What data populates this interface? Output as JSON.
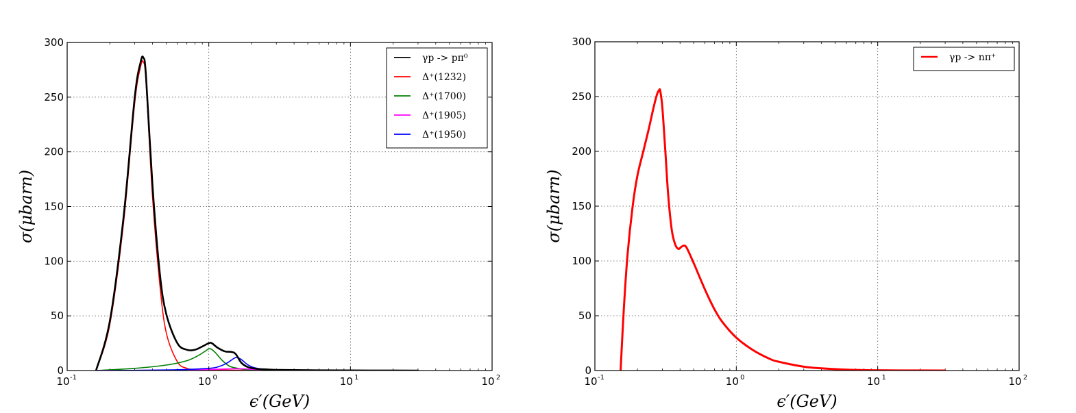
{
  "chart_data": [
    {
      "type": "line",
      "xscale": "log",
      "xlim": [
        0.1,
        100
      ],
      "ylim": [
        0,
        300
      ],
      "x_ticks": [
        {
          "base": "10",
          "exp": "-1"
        },
        {
          "base": "10",
          "exp": "0"
        },
        {
          "base": "10",
          "exp": "1"
        },
        {
          "base": "10",
          "exp": "2"
        }
      ],
      "y_ticks": [
        "0",
        "50",
        "100",
        "150",
        "200",
        "250",
        "300"
      ],
      "xlabel": "ϵ′(GeV)",
      "ylabel": "σ(μbarn)",
      "grid": true,
      "legend_position": "top-right",
      "series": [
        {
          "name": "γp -> pπ⁰",
          "color": "#000000",
          "x": [
            0.16,
            0.2,
            0.25,
            0.3,
            0.33,
            0.345,
            0.36,
            0.4,
            0.45,
            0.5,
            0.6,
            0.7,
            0.8,
            0.9,
            1.0,
            1.05,
            1.15,
            1.3,
            1.45,
            1.55,
            1.7,
            1.9,
            2.2,
            2.6,
            3.0,
            4.0,
            6.0,
            10,
            20,
            30
          ],
          "y": [
            0,
            45,
            140,
            250,
            282,
            286,
            270,
            170,
            90,
            52,
            25,
            19,
            19,
            22,
            25,
            25,
            21,
            17.5,
            17,
            15,
            7,
            3,
            1.5,
            1,
            0.6,
            0.4,
            0.2,
            0.1,
            0.05,
            0
          ]
        },
        {
          "name": "Δ⁺(1232)",
          "color": "#ff0000",
          "x": [
            0.16,
            0.2,
            0.25,
            0.3,
            0.33,
            0.345,
            0.36,
            0.4,
            0.45,
            0.5,
            0.6,
            0.7,
            0.8,
            1.0,
            1.5,
            2.0,
            3.0
          ],
          "y": [
            0,
            42,
            135,
            245,
            278,
            282,
            265,
            160,
            80,
            35,
            8,
            2,
            1,
            0.6,
            0.3,
            0.2,
            0
          ]
        },
        {
          "name": "Δ⁺(1700)",
          "color": "#008000",
          "x": [
            0.16,
            0.3,
            0.5,
            0.7,
            0.85,
            0.95,
            1.02,
            1.1,
            1.25,
            1.4,
            1.6,
            1.8,
            2.2,
            3.0
          ],
          "y": [
            0,
            2,
            5,
            9,
            14,
            18,
            20,
            17,
            9,
            4,
            2,
            1,
            0.5,
            0
          ]
        },
        {
          "name": "Δ⁺(1905)",
          "color": "#ff00ff",
          "x": [
            0.16,
            0.5,
            1.0,
            1.5,
            1.8,
            2.2,
            3.0,
            5.0
          ],
          "y": [
            0,
            0.3,
            1,
            1.6,
            1.5,
            0.8,
            0.3,
            0
          ]
        },
        {
          "name": "Δ⁺(1950)",
          "color": "#0000ff",
          "x": [
            0.16,
            0.5,
            1.0,
            1.2,
            1.35,
            1.5,
            1.58,
            1.7,
            1.9,
            2.2,
            3.0,
            5.0
          ],
          "y": [
            0,
            0.5,
            2,
            4,
            7,
            11,
            12,
            10,
            5,
            2,
            0.5,
            0
          ]
        }
      ]
    },
    {
      "type": "line",
      "xscale": "log",
      "xlim": [
        0.1,
        100
      ],
      "ylim": [
        0,
        300
      ],
      "x_ticks": [
        {
          "base": "10",
          "exp": "-1"
        },
        {
          "base": "10",
          "exp": "0"
        },
        {
          "base": "10",
          "exp": "1"
        },
        {
          "base": "10",
          "exp": "2"
        }
      ],
      "y_ticks": [
        "0",
        "50",
        "100",
        "150",
        "200",
        "250",
        "300"
      ],
      "xlabel": "ϵ′(GeV)",
      "ylabel": "σ(μbarn)",
      "grid": true,
      "legend_position": "top-right",
      "series": [
        {
          "name": "γp -> nπ⁺",
          "color": "#ff0000",
          "x": [
            0.152,
            0.16,
            0.17,
            0.185,
            0.2,
            0.22,
            0.24,
            0.26,
            0.275,
            0.285,
            0.29,
            0.3,
            0.315,
            0.33,
            0.35,
            0.37,
            0.39,
            0.41,
            0.43,
            0.45,
            0.5,
            0.6,
            0.7,
            0.8,
            1.0,
            1.3,
            1.7,
            2.0,
            3.0,
            4.0,
            6.0,
            8.0,
            10,
            20,
            30
          ],
          "y": [
            0,
            55,
            105,
            150,
            178,
            200,
            220,
            240,
            252,
            256,
            255,
            240,
            200,
            160,
            128,
            115,
            111,
            113,
            114,
            111,
            98,
            74,
            56,
            44,
            30,
            19,
            11,
            8,
            3.5,
            2,
            0.8,
            0.4,
            0.2,
            0.05,
            0
          ]
        }
      ]
    }
  ]
}
